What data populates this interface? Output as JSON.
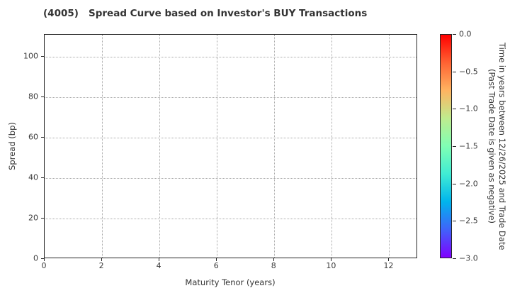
{
  "chart_data": {
    "type": "scatter",
    "title": "(4005)   Spread Curve based on Investor's BUY Transactions",
    "xlabel": "Maturity Tenor (years)",
    "ylabel": "Spread (bp)",
    "xlim": [
      0,
      13
    ],
    "ylim": [
      0,
      111
    ],
    "xticks": [
      0,
      2,
      4,
      6,
      8,
      10,
      12
    ],
    "yticks": [
      0,
      20,
      40,
      60,
      80,
      100
    ],
    "grid": true,
    "grid_style": "dotted",
    "legend_position": "none",
    "points": [],
    "series": [],
    "colorbar": {
      "label_line1": "Time in years between 12/26/2025 and Trade Date",
      "label_line2": "(Past Trade Date is given as negative)",
      "vmax": 0.0,
      "vmin": -3.0,
      "tick_values": [
        0.0,
        -0.5,
        -1.0,
        -1.5,
        -2.0,
        -2.5,
        -3.0
      ],
      "tick_labels": [
        "0.0",
        "−0.5",
        "−1.0",
        "−1.5",
        "−2.0",
        "−2.5",
        "−3.0"
      ],
      "colormap": "rainbow_reversed",
      "gradient": [
        {
          "pos": 0.0,
          "color": "#ff0000"
        },
        {
          "pos": 0.125,
          "color": "#ff6232"
        },
        {
          "pos": 0.25,
          "color": "#ffb461"
        },
        {
          "pos": 0.375,
          "color": "#bfec8e"
        },
        {
          "pos": 0.5,
          "color": "#80ffb4"
        },
        {
          "pos": 0.625,
          "color": "#40ecd4"
        },
        {
          "pos": 0.75,
          "color": "#00b4ec"
        },
        {
          "pos": 0.875,
          "color": "#4062fa"
        },
        {
          "pos": 1.0,
          "color": "#8000ff"
        }
      ]
    },
    "colors": {
      "spine": "#262626",
      "grid": "#a8a8a8",
      "text": "#333333",
      "background": "#ffffff"
    }
  }
}
